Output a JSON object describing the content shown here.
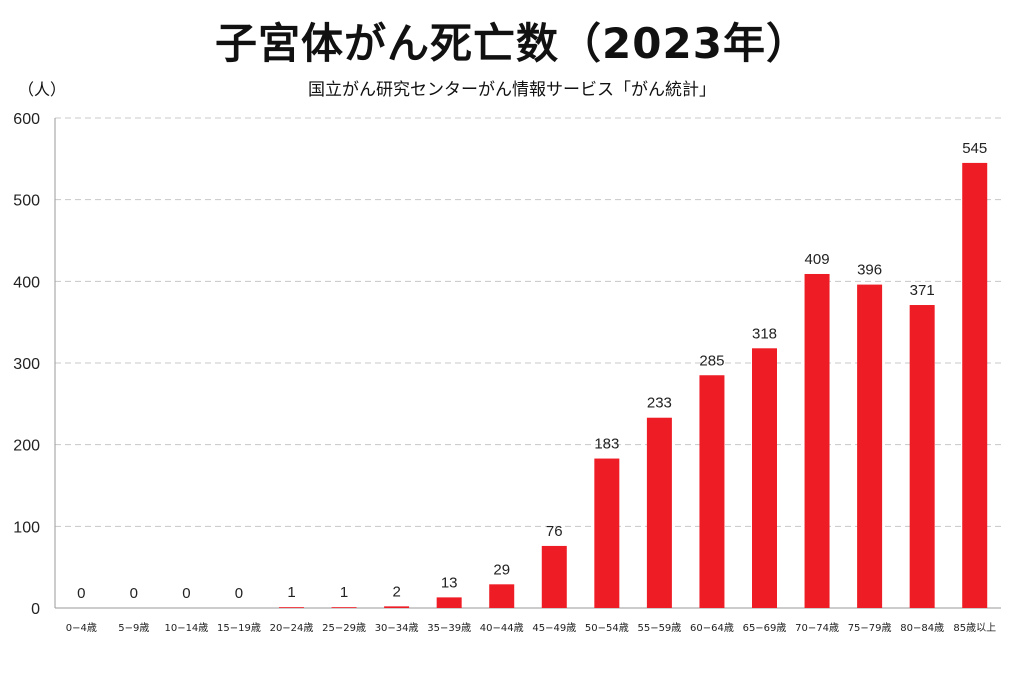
{
  "header": {
    "title": "子宮体がん死亡数（2023年）",
    "subtitle": "国立がん研究センターがん情報サービス「がん統計」",
    "unit": "（人）"
  },
  "colors": {
    "bar": "#ee1c25",
    "grid": "#c8c8c8",
    "axis": "#9a9a9a"
  },
  "chart_data": {
    "type": "bar",
    "title": "子宮体がん死亡数（2023年）",
    "subtitle": "国立がん研究センターがん情報サービス「がん統計」",
    "ylabel": "（人）",
    "xlabel": "",
    "ylim": [
      0,
      600
    ],
    "yticks": [
      0,
      100,
      200,
      300,
      400,
      500,
      600
    ],
    "grid": true,
    "categories": [
      "0−4歳",
      "5−9歳",
      "10−14歳",
      "15−19歳",
      "20−24歳",
      "25−29歳",
      "30−34歳",
      "35−39歳",
      "40−44歳",
      "45−49歳",
      "50−54歳",
      "55−59歳",
      "60−64歳",
      "65−69歳",
      "70−74歳",
      "75−79歳",
      "80−84歳",
      "85歳以上"
    ],
    "values": [
      0,
      0,
      0,
      0,
      1,
      1,
      2,
      13,
      29,
      76,
      183,
      233,
      285,
      318,
      409,
      396,
      371,
      545
    ]
  }
}
